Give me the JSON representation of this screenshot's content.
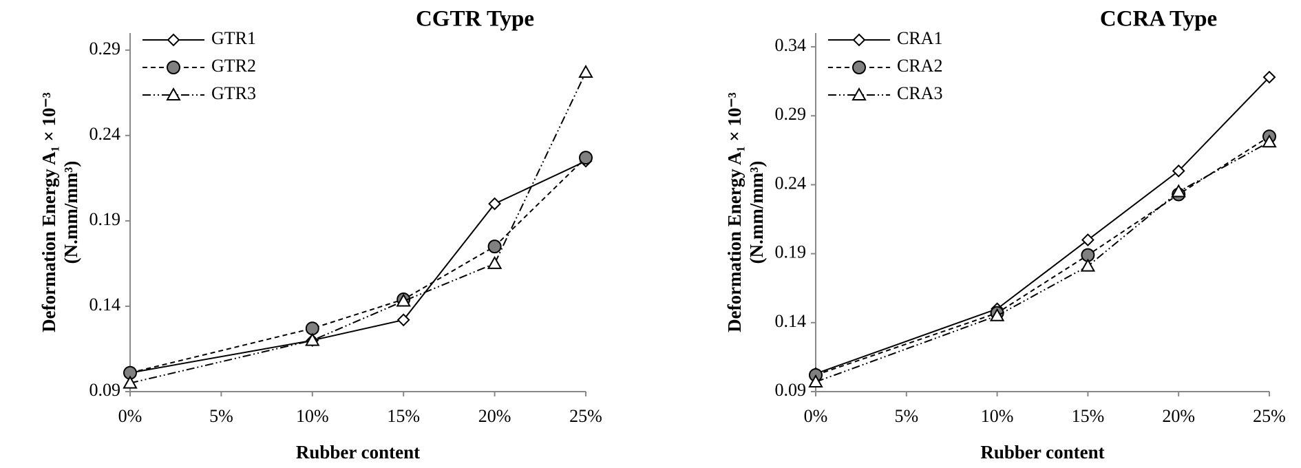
{
  "chart_data": [
    {
      "type": "line",
      "title": "CGTR Type",
      "x_label": "Rubber content",
      "y_label": [
        "Deformation Energy A₁ × 10⁻³",
        "(N.mm/mm³)"
      ],
      "x": [
        0,
        10,
        15,
        20,
        25
      ],
      "xlim": [
        0,
        25
      ],
      "xticks": [
        {
          "value": 0,
          "label": "0%"
        },
        {
          "value": 5,
          "label": "5%"
        },
        {
          "value": 10,
          "label": "10%"
        },
        {
          "value": 15,
          "label": "15%"
        },
        {
          "value": 20,
          "label": "20%"
        },
        {
          "value": 25,
          "label": "25%"
        }
      ],
      "ylim": [
        0.09,
        0.3
      ],
      "yticks": [
        0.09,
        0.14,
        0.19,
        0.24,
        0.29
      ],
      "legend": "upper left",
      "series": [
        {
          "name": "GTR1",
          "color": "#000000",
          "marker": "diamond",
          "marker_fill": "#ffffff",
          "linestyle": "solid",
          "values": [
            0.101,
            0.12,
            0.132,
            0.2,
            0.225
          ]
        },
        {
          "name": "GTR2",
          "color": "#000000",
          "marker": "circle",
          "marker_fill": "#808080",
          "linestyle": "dashed",
          "values": [
            0.101,
            0.127,
            0.144,
            0.175,
            0.227
          ]
        },
        {
          "name": "GTR3",
          "color": "#000000",
          "marker": "triangle",
          "marker_fill": "#ffffff",
          "linestyle": "dashdotdot",
          "values": [
            0.095,
            0.12,
            0.143,
            0.165,
            0.277
          ]
        }
      ]
    },
    {
      "type": "line",
      "title": "CCRA Type",
      "x_label": "Rubber content",
      "y_label": [
        "Deformation Energy A₁ × 10⁻³",
        "(N.mm/mm³)"
      ],
      "x": [
        0,
        10,
        15,
        20,
        25
      ],
      "xlim": [
        0,
        25
      ],
      "xticks": [
        {
          "value": 0,
          "label": "0%"
        },
        {
          "value": 5,
          "label": "5%"
        },
        {
          "value": 10,
          "label": "10%"
        },
        {
          "value": 15,
          "label": "15%"
        },
        {
          "value": 20,
          "label": "20%"
        },
        {
          "value": 25,
          "label": "25%"
        }
      ],
      "ylim": [
        0.09,
        0.35
      ],
      "yticks": [
        0.09,
        0.14,
        0.19,
        0.24,
        0.29,
        0.34
      ],
      "legend": "upper left",
      "series": [
        {
          "name": "CRA1",
          "color": "#000000",
          "marker": "diamond",
          "marker_fill": "#ffffff",
          "linestyle": "solid",
          "values": [
            0.103,
            0.15,
            0.2,
            0.25,
            0.318
          ]
        },
        {
          "name": "CRA2",
          "color": "#000000",
          "marker": "circle",
          "marker_fill": "#808080",
          "linestyle": "dashed",
          "values": [
            0.102,
            0.147,
            0.189,
            0.233,
            0.275
          ]
        },
        {
          "name": "CRA3",
          "color": "#000000",
          "marker": "triangle",
          "marker_fill": "#ffffff",
          "linestyle": "dashdotdot",
          "values": [
            0.097,
            0.145,
            0.181,
            0.235,
            0.271
          ]
        }
      ]
    }
  ]
}
